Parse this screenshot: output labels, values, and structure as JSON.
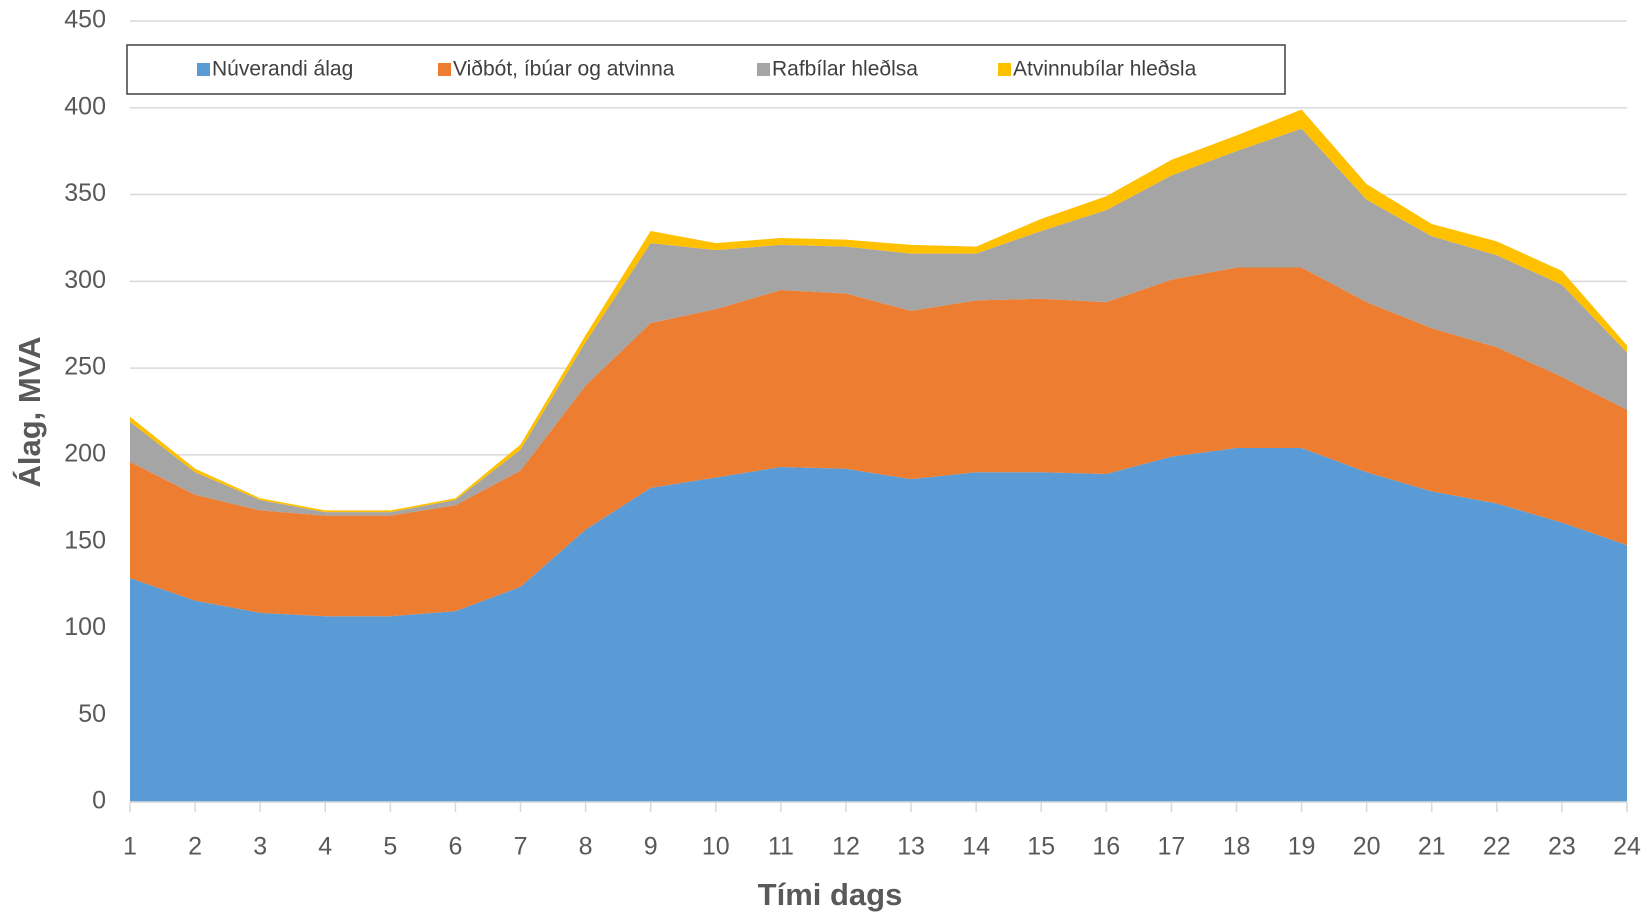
{
  "chart_data": {
    "type": "stacked_area",
    "x_label": "Tími dags",
    "y_label": "Álag, MVA",
    "x": [
      1,
      2,
      3,
      4,
      5,
      6,
      7,
      8,
      9,
      10,
      11,
      12,
      13,
      14,
      15,
      16,
      17,
      18,
      19,
      20,
      21,
      22,
      23,
      24
    ],
    "xlim": [
      1,
      24
    ],
    "xticks": [
      1,
      2,
      3,
      4,
      5,
      6,
      7,
      8,
      9,
      10,
      11,
      12,
      13,
      14,
      15,
      16,
      17,
      18,
      19,
      20,
      21,
      22,
      23,
      24
    ],
    "ylim": [
      0,
      450
    ],
    "yticks": [
      0,
      50,
      100,
      150,
      200,
      250,
      300,
      350,
      400,
      450
    ],
    "grid": true,
    "legend": "top",
    "series": [
      {
        "name": "Núverandi álag",
        "color": "#5b9bd5",
        "values": [
          129,
          116,
          109,
          107,
          107,
          110,
          124,
          157,
          181,
          187,
          193,
          192,
          186,
          190,
          190,
          189,
          199,
          204,
          204,
          190,
          179,
          172,
          161,
          148
        ]
      },
      {
        "name": "Viðbót, íbúar og atvinna",
        "color": "#ed7d31",
        "values": [
          67,
          61,
          59,
          58,
          58,
          61,
          67,
          83,
          95,
          97,
          102,
          101,
          97,
          99,
          100,
          99,
          102,
          104,
          104,
          98,
          94,
          90,
          84,
          78
        ]
      },
      {
        "name": "Rafbílar hleðlsa",
        "color": "#a5a5a5",
        "values": [
          23,
          13,
          6,
          2,
          2,
          3,
          12,
          25,
          46,
          34,
          26,
          27,
          33,
          27,
          39,
          53,
          60,
          67,
          80,
          59,
          53,
          53,
          53,
          33
        ]
      },
      {
        "name": "Atvinnubílar hleðsla",
        "color": "#ffc000",
        "values": [
          3,
          2,
          1,
          1,
          1,
          1,
          3,
          4,
          7,
          4,
          4,
          4,
          5,
          4,
          7,
          8,
          9,
          9,
          11,
          9,
          7,
          8,
          8,
          4
        ]
      }
    ]
  }
}
